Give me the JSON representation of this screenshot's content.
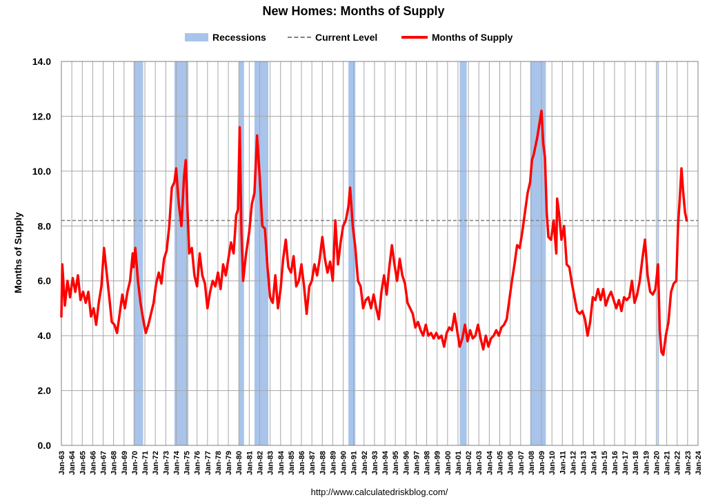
{
  "chart_data": {
    "type": "line",
    "title": "New Homes: Months of Supply",
    "xlabel": "",
    "ylabel": "Months of Supply",
    "ylim": [
      0,
      14
    ],
    "y_ticks": [
      "0.0",
      "2.0",
      "4.0",
      "6.0",
      "8.0",
      "10.0",
      "12.0",
      "14.0"
    ],
    "x_ticks": [
      "Jan-63",
      "Jan-64",
      "Jan-65",
      "Jan-66",
      "Jan-67",
      "Jan-68",
      "Jan-69",
      "Jan-70",
      "Jan-71",
      "Jan-72",
      "Jan-73",
      "Jan-74",
      "Jan-75",
      "Jan-76",
      "Jan-77",
      "Jan-78",
      "Jan-79",
      "Jan-80",
      "Jan-81",
      "Jan-82",
      "Jan-83",
      "Jan-84",
      "Jan-85",
      "Jan-86",
      "Jan-87",
      "Jan-88",
      "Jan-89",
      "Jan-90",
      "Jan-91",
      "Jan-92",
      "Jan-93",
      "Jan-94",
      "Jan-95",
      "Jan-96",
      "Jan-97",
      "Jan-98",
      "Jan-99",
      "Jan-00",
      "Jan-01",
      "Jan-02",
      "Jan-03",
      "Jan-04",
      "Jan-05",
      "Jan-06",
      "Jan-07",
      "Jan-08",
      "Jan-09",
      "Jan-10",
      "Jan-11",
      "Jan-12",
      "Jan-13",
      "Jan-14",
      "Jan-15",
      "Jan-16",
      "Jan-17",
      "Jan-18",
      "Jan-19",
      "Jan-20",
      "Jan-21",
      "Jan-22",
      "Jan-23",
      "Jan-24"
    ],
    "grid": true,
    "legend": "top-center",
    "legend_entries": [
      "Recessions",
      "Current Level",
      "Months of Supply"
    ],
    "colors": {
      "series": "#ff0000",
      "recession": "#a9c4ea",
      "current_level": "#7f7f7f",
      "grid": "#a6a6a6"
    },
    "current_level": 8.2,
    "recessions": [
      {
        "start": "1969-12",
        "end": "1970-11"
      },
      {
        "start": "1973-11",
        "end": "1975-03"
      },
      {
        "start": "1980-01",
        "end": "1980-07"
      },
      {
        "start": "1981-07",
        "end": "1982-11"
      },
      {
        "start": "1990-07",
        "end": "1991-03"
      },
      {
        "start": "2001-03",
        "end": "2001-11"
      },
      {
        "start": "2007-12",
        "end": "2009-06"
      },
      {
        "start": "2020-02",
        "end": "2020-04"
      }
    ],
    "series": [
      {
        "name": "Months of Supply",
        "points": [
          [
            "1963-01",
            4.7
          ],
          [
            "1963-02",
            6.6
          ],
          [
            "1963-05",
            5.1
          ],
          [
            "1963-08",
            6.0
          ],
          [
            "1963-11",
            5.4
          ],
          [
            "1964-02",
            6.1
          ],
          [
            "1964-05",
            5.6
          ],
          [
            "1964-08",
            6.2
          ],
          [
            "1964-11",
            5.3
          ],
          [
            "1965-02",
            5.6
          ],
          [
            "1965-05",
            5.2
          ],
          [
            "1965-08",
            5.6
          ],
          [
            "1965-11",
            4.7
          ],
          [
            "1966-02",
            5.0
          ],
          [
            "1966-05",
            4.4
          ],
          [
            "1966-08",
            5.2
          ],
          [
            "1966-11",
            5.8
          ],
          [
            "1967-02",
            7.2
          ],
          [
            "1967-05",
            6.3
          ],
          [
            "1967-08",
            5.4
          ],
          [
            "1967-11",
            4.5
          ],
          [
            "1968-02",
            4.4
          ],
          [
            "1968-05",
            4.1
          ],
          [
            "1968-08",
            4.8
          ],
          [
            "1968-11",
            5.5
          ],
          [
            "1969-02",
            5.0
          ],
          [
            "1969-05",
            5.6
          ],
          [
            "1969-08",
            6.0
          ],
          [
            "1969-11",
            7.0
          ],
          [
            "1969-12",
            6.5
          ],
          [
            "1970-02",
            7.2
          ],
          [
            "1970-05",
            6.0
          ],
          [
            "1970-08",
            5.2
          ],
          [
            "1970-11",
            4.6
          ],
          [
            "1971-02",
            4.1
          ],
          [
            "1971-05",
            4.4
          ],
          [
            "1971-08",
            4.8
          ],
          [
            "1971-11",
            5.2
          ],
          [
            "1972-02",
            5.9
          ],
          [
            "1972-05",
            6.3
          ],
          [
            "1972-08",
            5.9
          ],
          [
            "1972-11",
            6.8
          ],
          [
            "1973-02",
            7.1
          ],
          [
            "1973-05",
            8.0
          ],
          [
            "1973-08",
            9.4
          ],
          [
            "1973-11",
            9.6
          ],
          [
            "1974-01",
            10.1
          ],
          [
            "1974-04",
            8.8
          ],
          [
            "1974-07",
            8.0
          ],
          [
            "1974-10",
            9.8
          ],
          [
            "1974-12",
            10.4
          ],
          [
            "1975-02",
            8.6
          ],
          [
            "1975-04",
            7.0
          ],
          [
            "1975-07",
            7.2
          ],
          [
            "1975-10",
            6.2
          ],
          [
            "1976-01",
            5.8
          ],
          [
            "1976-04",
            7.0
          ],
          [
            "1976-07",
            6.2
          ],
          [
            "1976-10",
            5.9
          ],
          [
            "1977-01",
            5.0
          ],
          [
            "1977-04",
            5.6
          ],
          [
            "1977-07",
            6.0
          ],
          [
            "1977-10",
            5.8
          ],
          [
            "1978-01",
            6.3
          ],
          [
            "1978-04",
            5.7
          ],
          [
            "1978-07",
            6.6
          ],
          [
            "1978-10",
            6.2
          ],
          [
            "1979-01",
            6.8
          ],
          [
            "1979-04",
            7.4
          ],
          [
            "1979-07",
            7.0
          ],
          [
            "1979-10",
            8.4
          ],
          [
            "1979-12",
            8.6
          ],
          [
            "1980-02",
            11.6
          ],
          [
            "1980-04",
            7.8
          ],
          [
            "1980-06",
            6.0
          ],
          [
            "1980-09",
            6.9
          ],
          [
            "1981-01",
            7.8
          ],
          [
            "1981-04",
            8.8
          ],
          [
            "1981-07",
            9.2
          ],
          [
            "1981-10",
            11.3
          ],
          [
            "1982-01",
            9.8
          ],
          [
            "1982-04",
            8.0
          ],
          [
            "1982-07",
            7.9
          ],
          [
            "1982-10",
            6.5
          ],
          [
            "1983-01",
            5.4
          ],
          [
            "1983-04",
            5.2
          ],
          [
            "1983-07",
            6.2
          ],
          [
            "1983-10",
            5.0
          ],
          [
            "1984-01",
            5.7
          ],
          [
            "1984-04",
            6.8
          ],
          [
            "1984-07",
            7.5
          ],
          [
            "1984-10",
            6.5
          ],
          [
            "1985-01",
            6.3
          ],
          [
            "1985-04",
            6.9
          ],
          [
            "1985-07",
            5.8
          ],
          [
            "1985-10",
            6.0
          ],
          [
            "1986-01",
            6.6
          ],
          [
            "1986-04",
            5.8
          ],
          [
            "1986-07",
            4.8
          ],
          [
            "1986-10",
            5.8
          ],
          [
            "1987-01",
            6.0
          ],
          [
            "1987-04",
            6.6
          ],
          [
            "1987-07",
            6.2
          ],
          [
            "1987-10",
            6.8
          ],
          [
            "1988-01",
            7.6
          ],
          [
            "1988-04",
            6.8
          ],
          [
            "1988-07",
            6.3
          ],
          [
            "1988-10",
            6.7
          ],
          [
            "1989-01",
            6.0
          ],
          [
            "1989-04",
            8.2
          ],
          [
            "1989-07",
            6.6
          ],
          [
            "1989-10",
            7.4
          ],
          [
            "1990-01",
            8.0
          ],
          [
            "1990-04",
            8.2
          ],
          [
            "1990-07",
            8.7
          ],
          [
            "1990-09",
            9.4
          ],
          [
            "1990-12",
            8.0
          ],
          [
            "1991-03",
            7.2
          ],
          [
            "1991-06",
            6.0
          ],
          [
            "1991-09",
            5.8
          ],
          [
            "1991-12",
            5.0
          ],
          [
            "1992-03",
            5.3
          ],
          [
            "1992-06",
            5.4
          ],
          [
            "1992-09",
            5.0
          ],
          [
            "1992-12",
            5.5
          ],
          [
            "1993-03",
            5.0
          ],
          [
            "1993-06",
            4.6
          ],
          [
            "1993-09",
            5.6
          ],
          [
            "1993-12",
            6.2
          ],
          [
            "1994-03",
            5.5
          ],
          [
            "1994-06",
            6.5
          ],
          [
            "1994-09",
            7.3
          ],
          [
            "1994-12",
            6.6
          ],
          [
            "1995-03",
            6.0
          ],
          [
            "1995-06",
            6.8
          ],
          [
            "1995-09",
            6.2
          ],
          [
            "1995-12",
            5.9
          ],
          [
            "1996-03",
            5.2
          ],
          [
            "1996-06",
            5.0
          ],
          [
            "1996-09",
            4.8
          ],
          [
            "1996-12",
            4.3
          ],
          [
            "1997-03",
            4.5
          ],
          [
            "1997-06",
            4.2
          ],
          [
            "1997-09",
            4.0
          ],
          [
            "1997-12",
            4.4
          ],
          [
            "1998-03",
            4.0
          ],
          [
            "1998-06",
            4.1
          ],
          [
            "1998-09",
            3.9
          ],
          [
            "1998-12",
            4.1
          ],
          [
            "1999-03",
            3.9
          ],
          [
            "1999-06",
            4.0
          ],
          [
            "1999-09",
            3.6
          ],
          [
            "1999-12",
            4.1
          ],
          [
            "2000-03",
            4.3
          ],
          [
            "2000-06",
            4.2
          ],
          [
            "2000-09",
            4.8
          ],
          [
            "2000-12",
            4.2
          ],
          [
            "2001-03",
            3.6
          ],
          [
            "2001-06",
            3.9
          ],
          [
            "2001-09",
            4.4
          ],
          [
            "2001-12",
            3.8
          ],
          [
            "2002-03",
            4.2
          ],
          [
            "2002-06",
            3.9
          ],
          [
            "2002-09",
            4.0
          ],
          [
            "2002-12",
            4.4
          ],
          [
            "2003-03",
            3.9
          ],
          [
            "2003-06",
            3.5
          ],
          [
            "2003-09",
            4.0
          ],
          [
            "2003-12",
            3.6
          ],
          [
            "2004-03",
            3.9
          ],
          [
            "2004-06",
            4.0
          ],
          [
            "2004-09",
            4.2
          ],
          [
            "2004-12",
            4.0
          ],
          [
            "2005-03",
            4.3
          ],
          [
            "2005-06",
            4.4
          ],
          [
            "2005-09",
            4.6
          ],
          [
            "2005-12",
            5.3
          ],
          [
            "2006-03",
            6.0
          ],
          [
            "2006-06",
            6.6
          ],
          [
            "2006-09",
            7.3
          ],
          [
            "2006-12",
            7.2
          ],
          [
            "2007-03",
            7.8
          ],
          [
            "2007-06",
            8.5
          ],
          [
            "2007-09",
            9.2
          ],
          [
            "2007-12",
            9.6
          ],
          [
            "2008-02",
            10.4
          ],
          [
            "2008-04",
            10.6
          ],
          [
            "2008-06",
            10.9
          ],
          [
            "2008-08",
            11.2
          ],
          [
            "2008-11",
            11.8
          ],
          [
            "2009-01",
            12.2
          ],
          [
            "2009-03",
            11.0
          ],
          [
            "2009-05",
            10.5
          ],
          [
            "2009-07",
            8.5
          ],
          [
            "2009-09",
            7.6
          ],
          [
            "2009-12",
            7.5
          ],
          [
            "2010-03",
            8.2
          ],
          [
            "2010-06",
            7.0
          ],
          [
            "2010-07",
            9.0
          ],
          [
            "2010-09",
            8.5
          ],
          [
            "2010-12",
            7.5
          ],
          [
            "2011-03",
            8.0
          ],
          [
            "2011-06",
            6.6
          ],
          [
            "2011-09",
            6.5
          ],
          [
            "2011-12",
            5.9
          ],
          [
            "2012-03",
            5.4
          ],
          [
            "2012-06",
            4.9
          ],
          [
            "2012-09",
            4.8
          ],
          [
            "2012-12",
            4.9
          ],
          [
            "2013-03",
            4.6
          ],
          [
            "2013-06",
            4.0
          ],
          [
            "2013-09",
            4.5
          ],
          [
            "2013-12",
            5.4
          ],
          [
            "2014-03",
            5.3
          ],
          [
            "2014-06",
            5.7
          ],
          [
            "2014-09",
            5.3
          ],
          [
            "2014-12",
            5.7
          ],
          [
            "2015-03",
            5.1
          ],
          [
            "2015-06",
            5.4
          ],
          [
            "2015-09",
            5.6
          ],
          [
            "2015-12",
            5.3
          ],
          [
            "2016-03",
            5.0
          ],
          [
            "2016-06",
            5.3
          ],
          [
            "2016-09",
            4.9
          ],
          [
            "2016-12",
            5.4
          ],
          [
            "2017-03",
            5.3
          ],
          [
            "2017-06",
            5.4
          ],
          [
            "2017-09",
            6.0
          ],
          [
            "2017-12",
            5.2
          ],
          [
            "2018-03",
            5.5
          ],
          [
            "2018-06",
            6.0
          ],
          [
            "2018-09",
            6.8
          ],
          [
            "2018-12",
            7.5
          ],
          [
            "2019-03",
            6.2
          ],
          [
            "2019-06",
            5.6
          ],
          [
            "2019-09",
            5.5
          ],
          [
            "2019-12",
            5.7
          ],
          [
            "2020-03",
            6.6
          ],
          [
            "2020-05",
            4.2
          ],
          [
            "2020-07",
            3.4
          ],
          [
            "2020-09",
            3.3
          ],
          [
            "2020-12",
            4.0
          ],
          [
            "2021-03",
            4.5
          ],
          [
            "2021-06",
            5.6
          ],
          [
            "2021-09",
            5.9
          ],
          [
            "2021-12",
            6.0
          ],
          [
            "2022-02",
            8.0
          ],
          [
            "2022-04",
            9.0
          ],
          [
            "2022-06",
            10.1
          ],
          [
            "2022-08",
            9.2
          ],
          [
            "2022-10",
            8.5
          ],
          [
            "2022-12",
            8.2
          ]
        ]
      }
    ]
  },
  "source": "http://www.calculatedriskblog.com/"
}
